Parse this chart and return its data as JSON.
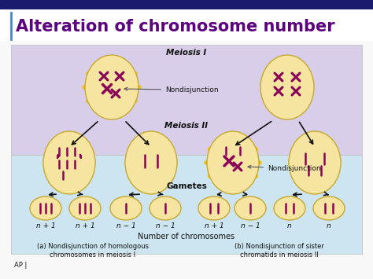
{
  "title": "Alteration of chromosome number",
  "title_color": "#5c0080",
  "title_fontsize": 15,
  "bg_color": "#f8f8f8",
  "top_stripe_color": "#1a1a6e",
  "top_band_color": "#d8ceea",
  "bottom_band_color": "#cce5f0",
  "cell_fill": "#f5e5a0",
  "cell_edge": "#c8a830",
  "chrom_color": "#8b0057",
  "arrow_color": "#111111",
  "meiosis1_label": "Meiosis I",
  "meiosis2_label": "Meiosis II",
  "gametes_label": "Gametes",
  "nondisjunction_label": "Nondisjunction",
  "bottom_label": "Number of chromosomes",
  "caption_a": "(a) Nondisjunction of homologous\nchromosomes in meiosis I",
  "caption_b": "(b) Nondisjunction of sister\nchromatids in meiosis II",
  "gamete_labels_a": [
    "n + 1",
    "n + 1",
    "n − 1",
    "n − 1"
  ],
  "gamete_labels_b": [
    "n + 1",
    "n − 1",
    "n",
    "n"
  ],
  "ap_label": "AP |"
}
